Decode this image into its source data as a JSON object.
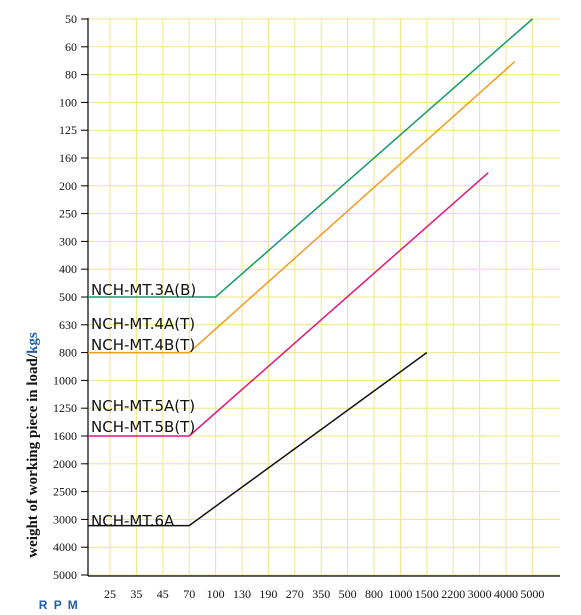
{
  "chart_data": {
    "type": "line",
    "title": "",
    "xlabel": "R P M",
    "ylabel_main": "weight of working piece in load/",
    "ylabel_unit": "kgs",
    "x_ticks": [
      "25",
      "35",
      "45",
      "70",
      "100",
      "130",
      "190",
      "270",
      "350",
      "500",
      "800",
      "1000",
      "1500",
      "2200",
      "3000",
      "4000",
      "5000"
    ],
    "y_ticks": [
      "50",
      "60",
      "80",
      "100",
      "125",
      "160",
      "200",
      "250",
      "300",
      "400",
      "500",
      "630",
      "800",
      "1000",
      "1250",
      "1600",
      "2000",
      "2500",
      "3000",
      "4000",
      "5000"
    ],
    "grid": true,
    "series": [
      {
        "name": "NCH-MT.3A(B)",
        "color": "#159a6a",
        "points": [
          [
            10,
            500
          ],
          [
            100,
            500
          ],
          [
            5000,
            50
          ]
        ]
      },
      {
        "name": "NCH-MT.4A(T)",
        "color": "#f29a1f",
        "points": []
      },
      {
        "name": "NCH-MT.4B(T)",
        "color": "#f29a1f",
        "points": [
          [
            10,
            800
          ],
          [
            70,
            800
          ],
          [
            4300,
            70
          ]
        ]
      },
      {
        "name": "NCH-MT.5A(T)",
        "color": "#e0157f",
        "points": []
      },
      {
        "name": "NCH-MT.5B(T)",
        "color": "#e0157f",
        "points": [
          [
            10,
            1600
          ],
          [
            70,
            1600
          ],
          [
            3300,
            180
          ]
        ]
      },
      {
        "name": "NCH-MT.6A",
        "color": "#111111",
        "points": [
          [
            10,
            3200
          ],
          [
            70,
            3200
          ],
          [
            1500,
            800
          ]
        ]
      }
    ]
  }
}
